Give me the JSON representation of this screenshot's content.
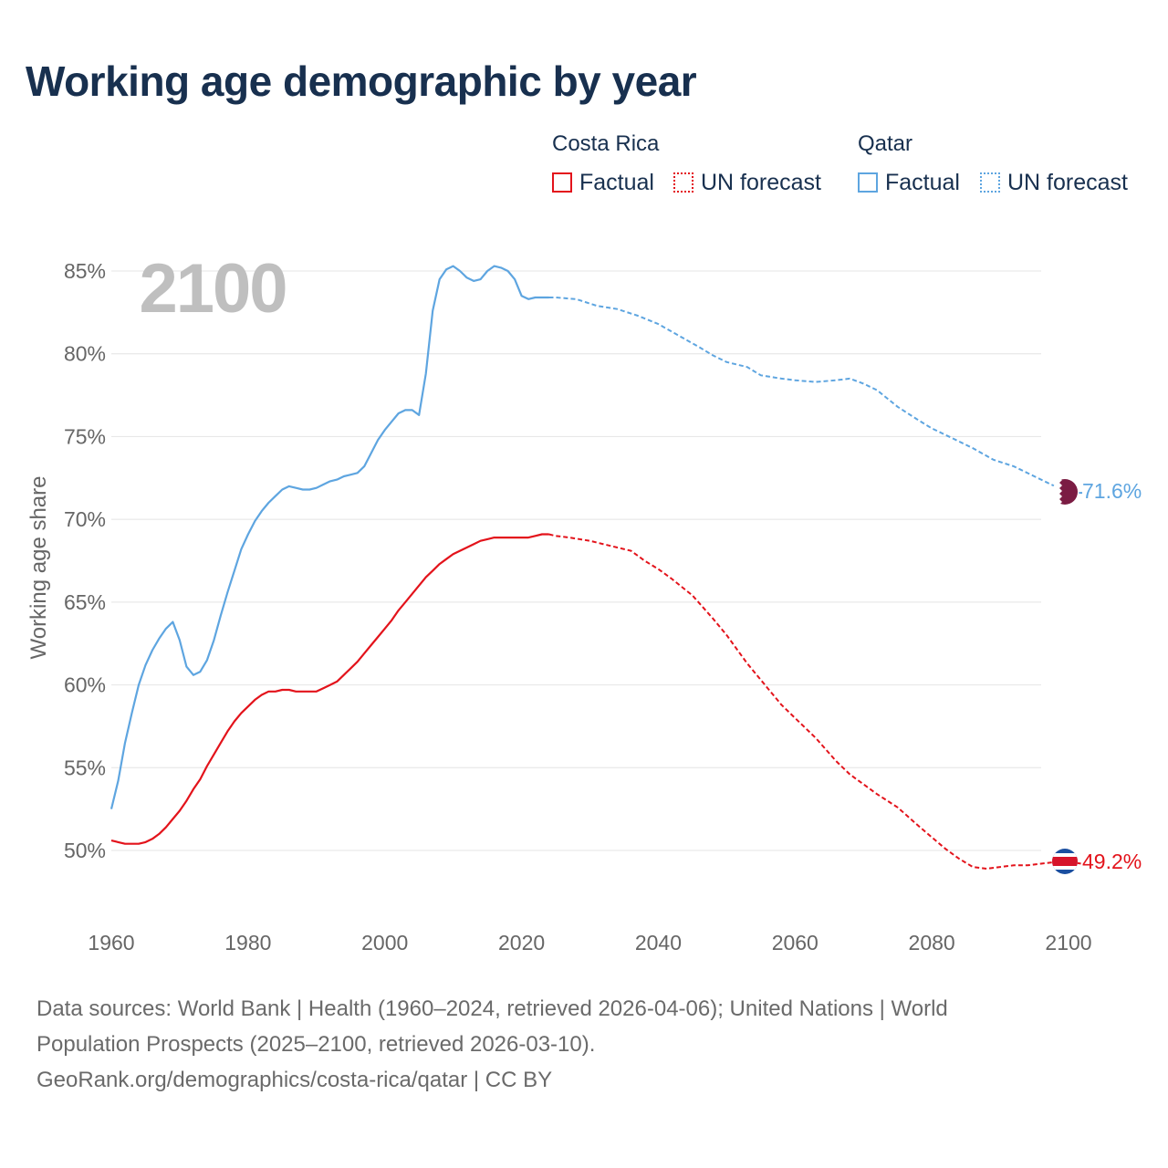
{
  "title": "Working age demographic by year",
  "legend": {
    "countries": [
      {
        "name": "Costa Rica",
        "color": "#e3131b",
        "factual_label": "Factual",
        "forecast_label": "UN forecast"
      },
      {
        "name": "Qatar",
        "color": "#5ea5e0",
        "factual_label": "Factual",
        "forecast_label": "UN forecast"
      }
    ]
  },
  "year_watermark": "2100",
  "end_labels": {
    "costa_rica": "49.2%",
    "qatar": "71.6%"
  },
  "flags": {
    "costa_rica": "costa-rica-flag-icon",
    "qatar": "qatar-flag-icon"
  },
  "chart_data": {
    "type": "line",
    "title": "Working age demographic by year",
    "ylabel": "Working age share",
    "xlabel": "",
    "xlim": [
      1960,
      2100
    ],
    "ylim": [
      46,
      87
    ],
    "x_ticks": [
      1960,
      1980,
      2000,
      2020,
      2040,
      2060,
      2080,
      2100
    ],
    "x_tick_labels": [
      "1960",
      "1980",
      "2000",
      "2020",
      "2040",
      "2060",
      "2080",
      "2100"
    ],
    "y_ticks": [
      50,
      55,
      60,
      65,
      70,
      75,
      80,
      85
    ],
    "y_tick_labels": [
      "50%",
      "55%",
      "60%",
      "65%",
      "70%",
      "75%",
      "80%",
      "85%"
    ],
    "grid": true,
    "factual_end_year": 2024,
    "series": [
      {
        "name": "Costa Rica",
        "color": "#e3131b",
        "points": [
          [
            1960,
            50.6
          ],
          [
            1961,
            50.5
          ],
          [
            1962,
            50.4
          ],
          [
            1963,
            50.4
          ],
          [
            1964,
            50.4
          ],
          [
            1965,
            50.5
          ],
          [
            1966,
            50.7
          ],
          [
            1967,
            51.0
          ],
          [
            1968,
            51.4
          ],
          [
            1969,
            51.9
          ],
          [
            1970,
            52.4
          ],
          [
            1971,
            53.0
          ],
          [
            1972,
            53.7
          ],
          [
            1973,
            54.3
          ],
          [
            1974,
            55.1
          ],
          [
            1975,
            55.8
          ],
          [
            1976,
            56.5
          ],
          [
            1977,
            57.2
          ],
          [
            1978,
            57.8
          ],
          [
            1979,
            58.3
          ],
          [
            1980,
            58.7
          ],
          [
            1981,
            59.1
          ],
          [
            1982,
            59.4
          ],
          [
            1983,
            59.6
          ],
          [
            1984,
            59.6
          ],
          [
            1985,
            59.7
          ],
          [
            1986,
            59.7
          ],
          [
            1987,
            59.6
          ],
          [
            1988,
            59.6
          ],
          [
            1989,
            59.6
          ],
          [
            1990,
            59.6
          ],
          [
            1991,
            59.8
          ],
          [
            1992,
            60.0
          ],
          [
            1993,
            60.2
          ],
          [
            1994,
            60.6
          ],
          [
            1995,
            61.0
          ],
          [
            1996,
            61.4
          ],
          [
            1997,
            61.9
          ],
          [
            1998,
            62.4
          ],
          [
            1999,
            62.9
          ],
          [
            2000,
            63.4
          ],
          [
            2001,
            63.9
          ],
          [
            2002,
            64.5
          ],
          [
            2003,
            65.0
          ],
          [
            2004,
            65.5
          ],
          [
            2005,
            66.0
          ],
          [
            2006,
            66.5
          ],
          [
            2007,
            66.9
          ],
          [
            2008,
            67.3
          ],
          [
            2009,
            67.6
          ],
          [
            2010,
            67.9
          ],
          [
            2011,
            68.1
          ],
          [
            2012,
            68.3
          ],
          [
            2013,
            68.5
          ],
          [
            2014,
            68.7
          ],
          [
            2015,
            68.8
          ],
          [
            2016,
            68.9
          ],
          [
            2017,
            68.9
          ],
          [
            2018,
            68.9
          ],
          [
            2019,
            68.9
          ],
          [
            2020,
            68.9
          ],
          [
            2021,
            68.9
          ],
          [
            2022,
            69.0
          ],
          [
            2023,
            69.1
          ],
          [
            2024,
            69.1
          ],
          [
            2025,
            69.0
          ],
          [
            2027,
            68.9
          ],
          [
            2030,
            68.7
          ],
          [
            2033,
            68.4
          ],
          [
            2036,
            68.1
          ],
          [
            2038,
            67.5
          ],
          [
            2040,
            67.0
          ],
          [
            2042,
            66.4
          ],
          [
            2045,
            65.4
          ],
          [
            2048,
            64.0
          ],
          [
            2050,
            63.0
          ],
          [
            2053,
            61.3
          ],
          [
            2056,
            59.8
          ],
          [
            2058,
            58.8
          ],
          [
            2060,
            58.0
          ],
          [
            2063,
            56.8
          ],
          [
            2066,
            55.4
          ],
          [
            2068,
            54.6
          ],
          [
            2070,
            54.0
          ],
          [
            2072,
            53.4
          ],
          [
            2075,
            52.6
          ],
          [
            2078,
            51.5
          ],
          [
            2080,
            50.8
          ],
          [
            2082,
            50.1
          ],
          [
            2084,
            49.5
          ],
          [
            2086,
            49.0
          ],
          [
            2088,
            48.9
          ],
          [
            2090,
            49.0
          ],
          [
            2092,
            49.1
          ],
          [
            2094,
            49.1
          ],
          [
            2096,
            49.2
          ],
          [
            2098,
            49.3
          ],
          [
            2100,
            49.3
          ],
          [
            2102,
            49.2
          ]
        ]
      },
      {
        "name": "Qatar",
        "color": "#5ea5e0",
        "points": [
          [
            1960,
            52.5
          ],
          [
            1961,
            54.2
          ],
          [
            1962,
            56.5
          ],
          [
            1963,
            58.3
          ],
          [
            1964,
            60.0
          ],
          [
            1965,
            61.2
          ],
          [
            1966,
            62.1
          ],
          [
            1967,
            62.8
          ],
          [
            1968,
            63.4
          ],
          [
            1969,
            63.8
          ],
          [
            1970,
            62.7
          ],
          [
            1971,
            61.1
          ],
          [
            1972,
            60.6
          ],
          [
            1973,
            60.8
          ],
          [
            1974,
            61.5
          ],
          [
            1975,
            62.7
          ],
          [
            1976,
            64.2
          ],
          [
            1977,
            65.6
          ],
          [
            1978,
            66.9
          ],
          [
            1979,
            68.2
          ],
          [
            1980,
            69.1
          ],
          [
            1981,
            69.9
          ],
          [
            1982,
            70.5
          ],
          [
            1983,
            71.0
          ],
          [
            1984,
            71.4
          ],
          [
            1985,
            71.8
          ],
          [
            1986,
            72.0
          ],
          [
            1987,
            71.9
          ],
          [
            1988,
            71.8
          ],
          [
            1989,
            71.8
          ],
          [
            1990,
            71.9
          ],
          [
            1991,
            72.1
          ],
          [
            1992,
            72.3
          ],
          [
            1993,
            72.4
          ],
          [
            1994,
            72.6
          ],
          [
            1995,
            72.7
          ],
          [
            1996,
            72.8
          ],
          [
            1997,
            73.2
          ],
          [
            1998,
            74.0
          ],
          [
            1999,
            74.8
          ],
          [
            2000,
            75.4
          ],
          [
            2001,
            75.9
          ],
          [
            2002,
            76.4
          ],
          [
            2003,
            76.6
          ],
          [
            2004,
            76.6
          ],
          [
            2005,
            76.3
          ],
          [
            2006,
            78.8
          ],
          [
            2007,
            82.6
          ],
          [
            2008,
            84.5
          ],
          [
            2009,
            85.1
          ],
          [
            2010,
            85.3
          ],
          [
            2011,
            85.0
          ],
          [
            2012,
            84.6
          ],
          [
            2013,
            84.4
          ],
          [
            2014,
            84.5
          ],
          [
            2015,
            85.0
          ],
          [
            2016,
            85.3
          ],
          [
            2017,
            85.2
          ],
          [
            2018,
            85.0
          ],
          [
            2019,
            84.5
          ],
          [
            2020,
            83.5
          ],
          [
            2021,
            83.3
          ],
          [
            2022,
            83.4
          ],
          [
            2023,
            83.4
          ],
          [
            2024,
            83.4
          ],
          [
            2025,
            83.4
          ],
          [
            2028,
            83.3
          ],
          [
            2031,
            82.9
          ],
          [
            2034,
            82.7
          ],
          [
            2037,
            82.3
          ],
          [
            2040,
            81.8
          ],
          [
            2043,
            81.1
          ],
          [
            2046,
            80.4
          ],
          [
            2048,
            79.9
          ],
          [
            2050,
            79.5
          ],
          [
            2053,
            79.2
          ],
          [
            2055,
            78.7
          ],
          [
            2058,
            78.5
          ],
          [
            2060,
            78.4
          ],
          [
            2063,
            78.3
          ],
          [
            2066,
            78.4
          ],
          [
            2068,
            78.5
          ],
          [
            2070,
            78.2
          ],
          [
            2072,
            77.8
          ],
          [
            2075,
            76.8
          ],
          [
            2078,
            76.0
          ],
          [
            2080,
            75.5
          ],
          [
            2083,
            74.9
          ],
          [
            2086,
            74.3
          ],
          [
            2089,
            73.6
          ],
          [
            2092,
            73.2
          ],
          [
            2095,
            72.6
          ],
          [
            2098,
            72.0
          ],
          [
            2100,
            71.6
          ],
          [
            2102,
            71.6
          ]
        ]
      }
    ]
  },
  "footer": {
    "line1": "Data sources: World Bank | Health (1960–2024, retrieved 2026-04-06); United Nations | World",
    "line2": "Population Prospects (2025–2100, retrieved 2026-03-10).",
    "line3": "GeoRank.org/demographics/costa-rica/qatar | CC BY"
  }
}
